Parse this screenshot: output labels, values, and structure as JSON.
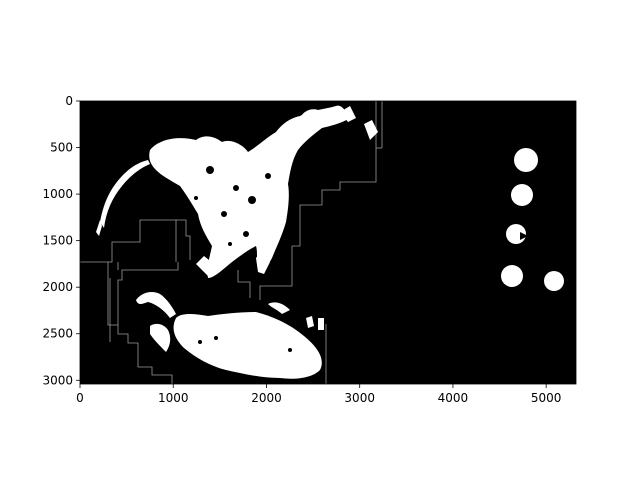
{
  "image_axes": {
    "x_ticks": [
      {
        "value": 0,
        "label": "0"
      },
      {
        "value": 1000,
        "label": "1000"
      },
      {
        "value": 2000,
        "label": "2000"
      },
      {
        "value": 3000,
        "label": "3000"
      },
      {
        "value": 4000,
        "label": "4000"
      },
      {
        "value": 5000,
        "label": "5000"
      }
    ],
    "y_ticks": [
      {
        "value": 0,
        "label": "0"
      },
      {
        "value": 500,
        "label": "500"
      },
      {
        "value": 1000,
        "label": "1000"
      },
      {
        "value": 1500,
        "label": "1500"
      },
      {
        "value": 2000,
        "label": "2000"
      },
      {
        "value": 2500,
        "label": "2500"
      },
      {
        "value": 3000,
        "label": "3000"
      }
    ],
    "x_range": [
      0,
      5320
    ],
    "y_range": [
      3040,
      0
    ],
    "y_inverted": true
  },
  "colors": {
    "background": "#000000",
    "mask_foreground": "#ffffff",
    "boundary_lines": "#9a9a9a",
    "page": "#ffffff"
  }
}
